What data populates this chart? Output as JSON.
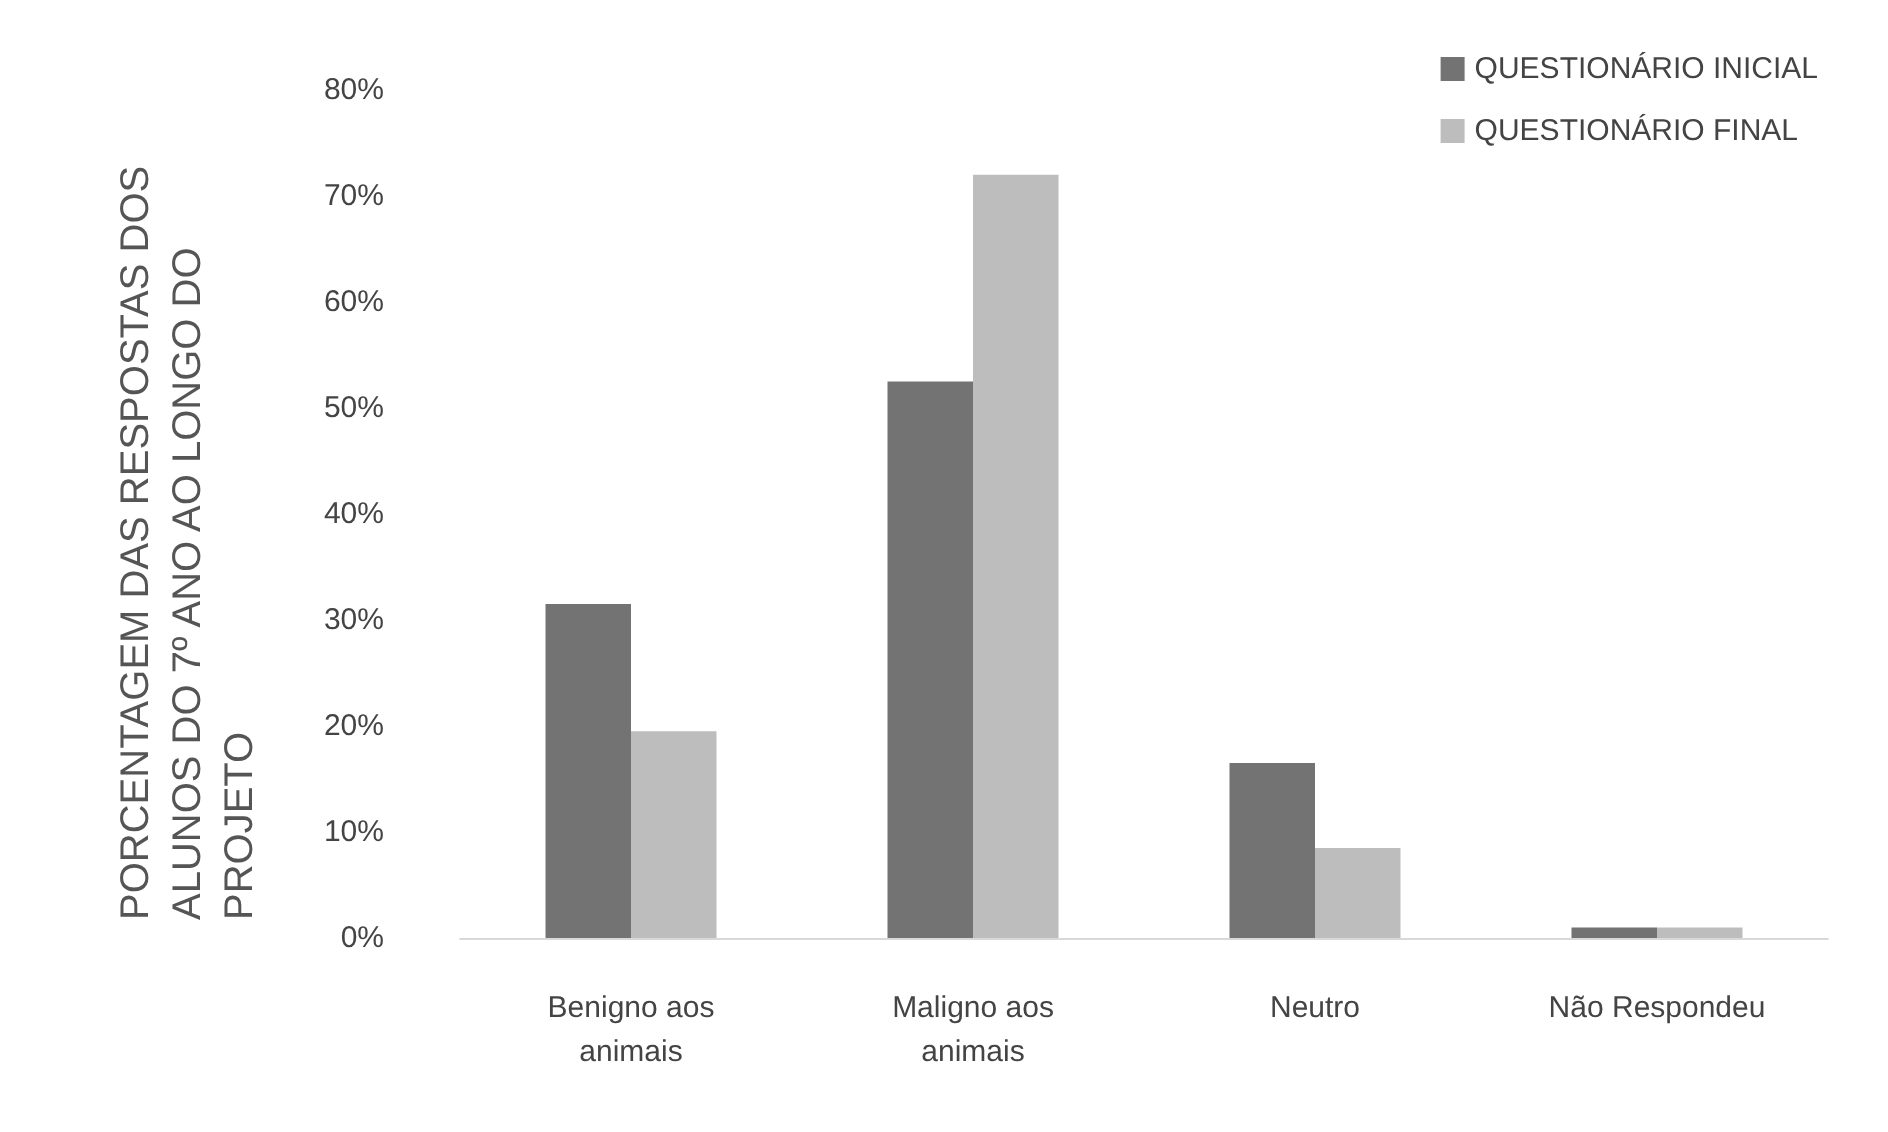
{
  "chart_data": {
    "type": "bar",
    "ylabel": "PORCENTAGEM DAS RESPOSTAS DOS ALUNOS DO 7º ANO AO LONGO DO PROJETO",
    "categories": [
      "Benigno aos\nanimais",
      "Maligno aos\nanimais",
      "Neutro",
      "Não Respondeu"
    ],
    "series": [
      {
        "name": "QUESTIONÁRIO INICIAL",
        "color": "#737373",
        "values": [
          31.5,
          52.5,
          16.5,
          1
        ]
      },
      {
        "name": "QUESTIONÁRIO FINAL",
        "color": "#bdbdbd",
        "values": [
          19.5,
          72,
          8.5,
          1
        ]
      }
    ],
    "ylim": [
      0,
      80
    ],
    "yticks": [
      {
        "value": 0,
        "label": "0%"
      },
      {
        "value": 10,
        "label": "10%"
      },
      {
        "value": 20,
        "label": "20%"
      },
      {
        "value": 30,
        "label": "30%"
      },
      {
        "value": 40,
        "label": "40%"
      },
      {
        "value": 50,
        "label": "50%"
      },
      {
        "value": 60,
        "label": "60%"
      },
      {
        "value": 70,
        "label": "70%"
      },
      {
        "value": 80,
        "label": "80%"
      }
    ],
    "grid": false,
    "legend": "top right"
  }
}
